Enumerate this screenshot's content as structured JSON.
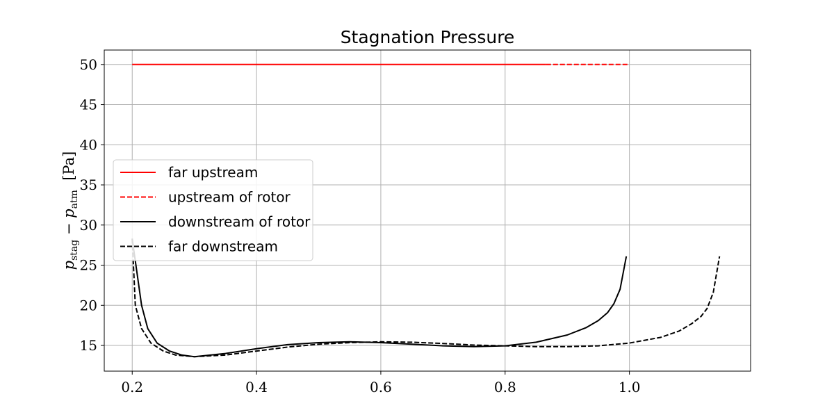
{
  "chart_data": {
    "type": "line",
    "title": "Stagnation Pressure",
    "xlabel": "",
    "ylabel": "p_stag − p_atm [Pa]",
    "ylabel_parts": {
      "p1": "p",
      "sub1": "stag",
      "minus": " − ",
      "p2": "p",
      "sub2": "atm",
      "unit": "  [Pa]"
    },
    "xlim": [
      0.155,
      1.195
    ],
    "ylim": [
      11.8,
      51.8
    ],
    "xticks": [
      0.2,
      0.4,
      0.6,
      0.8,
      1.0
    ],
    "xtick_labels": [
      "0.2",
      "0.4",
      "0.6",
      "0.8",
      "1.0"
    ],
    "yticks": [
      15,
      20,
      25,
      30,
      35,
      40,
      45,
      50
    ],
    "ytick_labels": [
      "15",
      "20",
      "25",
      "30",
      "35",
      "40",
      "45",
      "50"
    ],
    "grid": true,
    "legend_position": "center-left",
    "series": [
      {
        "name": "far upstream",
        "color": "#ff0000",
        "dash": "solid",
        "x": [
          0.2,
          0.866
        ],
        "y": [
          50,
          50
        ]
      },
      {
        "name": "upstream of rotor",
        "color": "#ff0000",
        "dash": "dashed",
        "x": [
          0.866,
          1.0
        ],
        "y": [
          50,
          50
        ]
      },
      {
        "name": "downstream of rotor",
        "color": "#000000",
        "dash": "solid",
        "x": [
          0.2,
          0.215,
          0.225,
          0.24,
          0.26,
          0.28,
          0.3,
          0.35,
          0.4,
          0.45,
          0.5,
          0.55,
          0.6,
          0.65,
          0.7,
          0.75,
          0.8,
          0.85,
          0.9,
          0.93,
          0.95,
          0.965,
          0.975,
          0.985,
          0.995
        ],
        "y": [
          28.3,
          20.0,
          17.1,
          15.3,
          14.3,
          13.8,
          13.6,
          14.0,
          14.6,
          15.1,
          15.35,
          15.45,
          15.35,
          15.15,
          14.95,
          14.85,
          14.95,
          15.4,
          16.3,
          17.2,
          18.1,
          19.1,
          20.2,
          22.0,
          26.1
        ]
      },
      {
        "name": "far downstream",
        "color": "#000000",
        "dash": "dashed",
        "x": [
          0.2,
          0.205,
          0.215,
          0.23,
          0.25,
          0.27,
          0.3,
          0.35,
          0.4,
          0.45,
          0.5,
          0.55,
          0.6,
          0.65,
          0.7,
          0.75,
          0.8,
          0.85,
          0.9,
          0.95,
          1.0,
          1.05,
          1.08,
          1.1,
          1.115,
          1.125,
          1.135,
          1.145
        ],
        "y": [
          28.3,
          20.0,
          17.1,
          15.3,
          14.3,
          13.8,
          13.6,
          13.8,
          14.3,
          14.8,
          15.15,
          15.35,
          15.45,
          15.4,
          15.25,
          15.05,
          14.95,
          14.85,
          14.85,
          14.95,
          15.3,
          16.0,
          16.8,
          17.7,
          18.6,
          19.6,
          21.6,
          26.1
        ]
      }
    ]
  }
}
